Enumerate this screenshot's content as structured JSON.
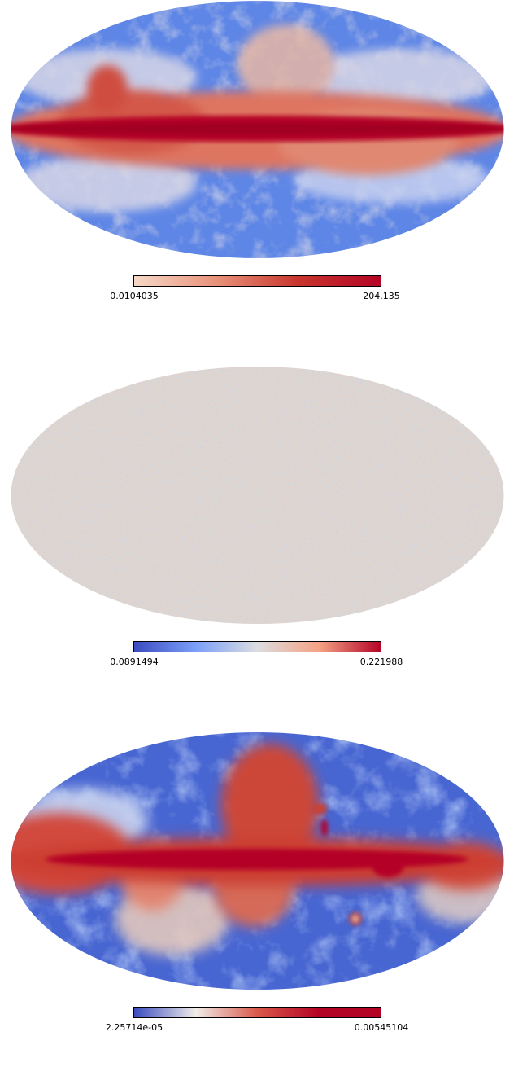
{
  "maps": [
    {
      "id": "map1",
      "colorbar": {
        "min_label": "0.0104035",
        "max_label": "204.135",
        "gradient": [
          "#f6d7c6",
          "#e8927a",
          "#c8352d",
          "#b40426"
        ]
      },
      "pattern": "galactic-dust",
      "colors": {
        "background": "#5e86e6",
        "band": "#b40426"
      }
    },
    {
      "id": "map2",
      "colorbar": {
        "min_label": "0.0891494",
        "max_label": "0.221988",
        "gradient": [
          "#3b4cc0",
          "#7b9ff9",
          "#dcdde0",
          "#f5a385",
          "#b40426"
        ]
      },
      "pattern": "noise",
      "colors": {
        "background": "#dcd4cf"
      }
    },
    {
      "id": "map3",
      "colorbar": {
        "min_label": "2.25714e-05",
        "max_label": "0.00545104",
        "gradient": [
          "#3b4cc0",
          "#f0ede9",
          "#d9584a",
          "#b40426",
          "#b40426"
        ]
      },
      "pattern": "synchrotron",
      "colors": {
        "background": "#4866d2",
        "band": "#b40426"
      }
    }
  ]
}
